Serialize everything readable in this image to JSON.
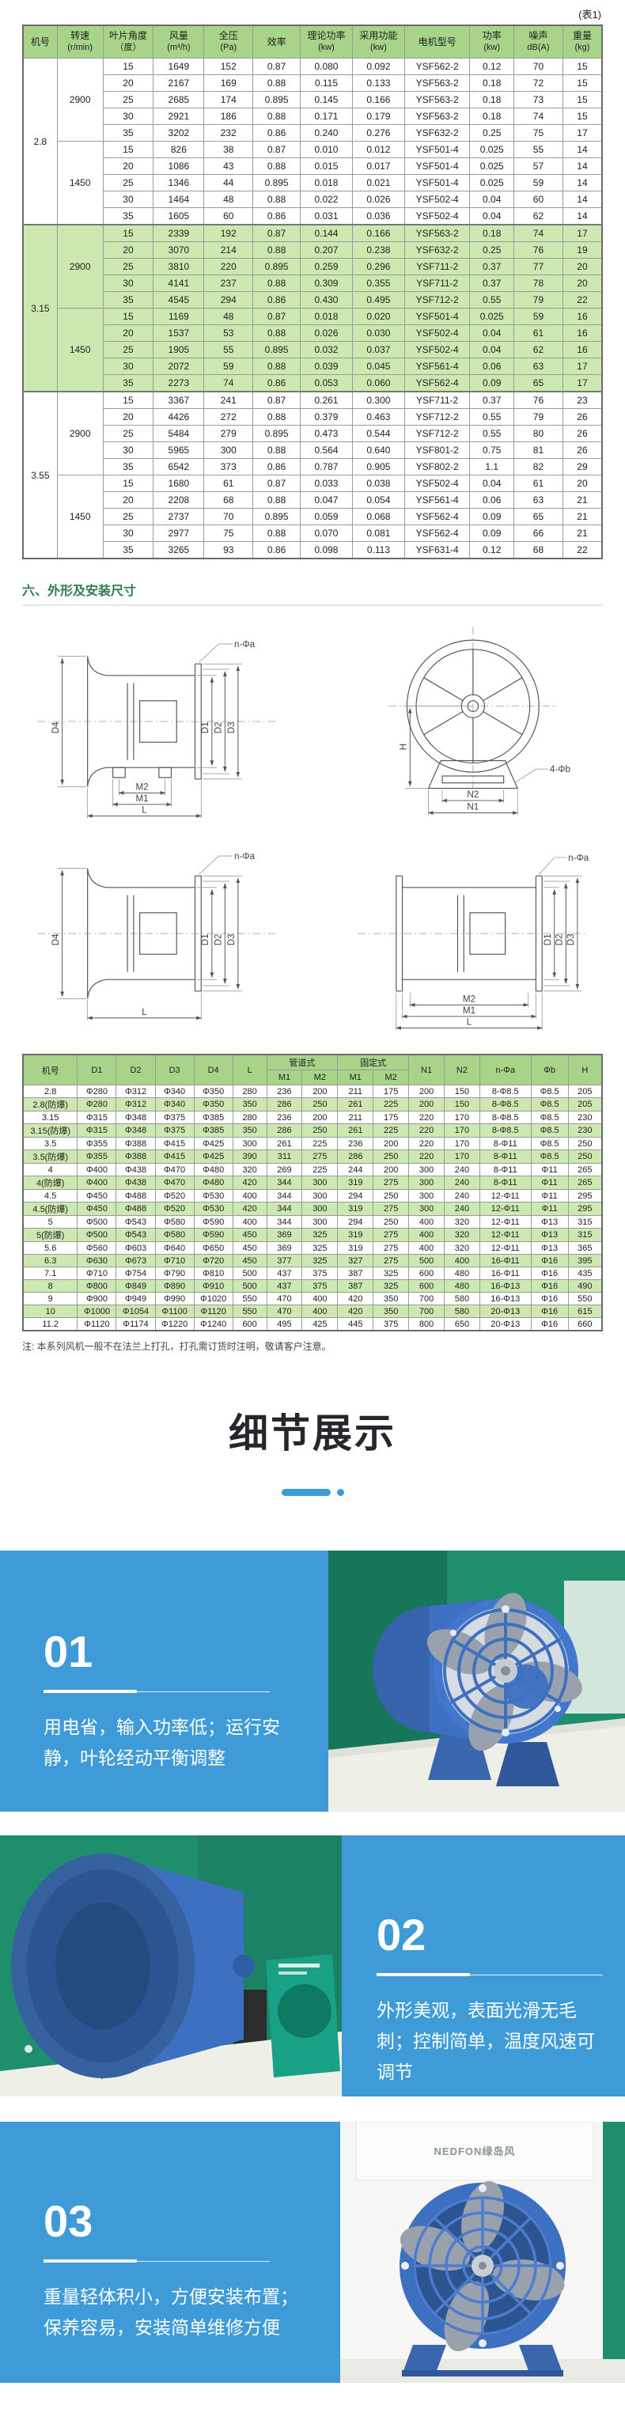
{
  "page": {
    "table_tag": "(表1)"
  },
  "colors": {
    "accent_blue": "#3E9BD8",
    "table_header_green": "#A8D489",
    "table_row_green": "#CDE8B0",
    "section_title_green": "#2E7D52",
    "banner_text": "#24272B"
  },
  "table1": {
    "headers": [
      {
        "t": "机号",
        "s": ""
      },
      {
        "t": "转速",
        "s": "(r/min)"
      },
      {
        "t": "叶片角度",
        "s": "（度）"
      },
      {
        "t": "风量",
        "s": "(m³/h)"
      },
      {
        "t": "全压",
        "s": "(Pa)"
      },
      {
        "t": "效率",
        "s": ""
      },
      {
        "t": "理论功率",
        "s": "(kw)"
      },
      {
        "t": "采用功能",
        "s": "(kw)"
      },
      {
        "t": "电机型号",
        "s": ""
      },
      {
        "t": "功率",
        "s": "(kw)"
      },
      {
        "t": "噪声",
        "s": "dB(A)"
      },
      {
        "t": "重量",
        "s": "(kg)"
      }
    ],
    "groups": [
      {
        "model": "2.8",
        "speeds": [
          {
            "rpm": "2900",
            "rows": [
              [
                "15",
                "1649",
                "152",
                "0.87",
                "0.080",
                "0.092",
                "YSF562-2",
                "0.12",
                "70",
                "15"
              ],
              [
                "20",
                "2167",
                "169",
                "0.88",
                "0.115",
                "0.133",
                "YSF563-2",
                "0.18",
                "72",
                "15"
              ],
              [
                "25",
                "2685",
                "174",
                "0.895",
                "0.145",
                "0.166",
                "YSF563-2",
                "0.18",
                "73",
                "15"
              ],
              [
                "30",
                "2921",
                "186",
                "0.88",
                "0.171",
                "0.179",
                "YSF563-2",
                "0.18",
                "74",
                "15"
              ],
              [
                "35",
                "3202",
                "232",
                "0.86",
                "0.240",
                "0.276",
                "YSF632-2",
                "0.25",
                "75",
                "17"
              ]
            ]
          },
          {
            "rpm": "1450",
            "rows": [
              [
                "15",
                "826",
                "38",
                "0.87",
                "0.010",
                "0.012",
                "YSF501-4",
                "0.025",
                "55",
                "14"
              ],
              [
                "20",
                "1086",
                "43",
                "0.88",
                "0.015",
                "0.017",
                "YSF501-4",
                "0.025",
                "57",
                "14"
              ],
              [
                "25",
                "1346",
                "44",
                "0.895",
                "0.018",
                "0.021",
                "YSF501-4",
                "0.025",
                "59",
                "14"
              ],
              [
                "30",
                "1464",
                "48",
                "0.88",
                "0.022",
                "0.026",
                "YSF502-4",
                "0.04",
                "60",
                "14"
              ],
              [
                "35",
                "1605",
                "60",
                "0.86",
                "0.031",
                "0.036",
                "YSF502-4",
                "0.04",
                "62",
                "14"
              ]
            ]
          }
        ]
      },
      {
        "model": "3.15",
        "speeds": [
          {
            "rpm": "2900",
            "rows": [
              [
                "15",
                "2339",
                "192",
                "0.87",
                "0.144",
                "0.166",
                "YSF563-2",
                "0.18",
                "74",
                "17"
              ],
              [
                "20",
                "3070",
                "214",
                "0.88",
                "0.207",
                "0.238",
                "YSF632-2",
                "0.25",
                "76",
                "19"
              ],
              [
                "25",
                "3810",
                "220",
                "0.895",
                "0.259",
                "0.296",
                "YSF711-2",
                "0.37",
                "77",
                "20"
              ],
              [
                "30",
                "4141",
                "237",
                "0.88",
                "0.309",
                "0.355",
                "YSF711-2",
                "0.37",
                "78",
                "20"
              ],
              [
                "35",
                "4545",
                "294",
                "0.86",
                "0.430",
                "0.495",
                "YSF712-2",
                "0.55",
                "79",
                "22"
              ]
            ]
          },
          {
            "rpm": "1450",
            "rows": [
              [
                "15",
                "1169",
                "48",
                "0.87",
                "0.018",
                "0.020",
                "YSF501-4",
                "0.025",
                "59",
                "16"
              ],
              [
                "20",
                "1537",
                "53",
                "0.88",
                "0.026",
                "0.030",
                "YSF502-4",
                "0.04",
                "61",
                "16"
              ],
              [
                "25",
                "1905",
                "55",
                "0.895",
                "0.032",
                "0.037",
                "YSF502-4",
                "0.04",
                "62",
                "16"
              ],
              [
                "30",
                "2072",
                "59",
                "0.88",
                "0.039",
                "0.045",
                "YSF561-4",
                "0.06",
                "63",
                "17"
              ],
              [
                "35",
                "2273",
                "74",
                "0.86",
                "0.053",
                "0.060",
                "YSF562-4",
                "0.09",
                "65",
                "17"
              ]
            ]
          }
        ]
      },
      {
        "model": "3.55",
        "speeds": [
          {
            "rpm": "2900",
            "rows": [
              [
                "15",
                "3367",
                "241",
                "0.87",
                "0.261",
                "0.300",
                "YSF711-2",
                "0.37",
                "76",
                "23"
              ],
              [
                "20",
                "4426",
                "272",
                "0.88",
                "0.379",
                "0.463",
                "YSF712-2",
                "0.55",
                "79",
                "26"
              ],
              [
                "25",
                "5484",
                "279",
                "0.895",
                "0.473",
                "0.544",
                "YSF712-2",
                "0.55",
                "80",
                "26"
              ],
              [
                "30",
                "5965",
                "300",
                "0.88",
                "0.564",
                "0.640",
                "YSF801-2",
                "0.75",
                "81",
                "26"
              ],
              [
                "35",
                "6542",
                "373",
                "0.86",
                "0.787",
                "0.905",
                "YSF802-2",
                "1.1",
                "82",
                "29"
              ]
            ]
          },
          {
            "rpm": "1450",
            "rows": [
              [
                "15",
                "1680",
                "61",
                "0.87",
                "0.033",
                "0.038",
                "YSF502-4",
                "0.04",
                "61",
                "20"
              ],
              [
                "20",
                "2208",
                "68",
                "0.88",
                "0.047",
                "0.054",
                "YSF561-4",
                "0.06",
                "63",
                "21"
              ],
              [
                "25",
                "2737",
                "70",
                "0.895",
                "0.059",
                "0.068",
                "YSF562-4",
                "0.09",
                "65",
                "21"
              ],
              [
                "30",
                "2977",
                "75",
                "0.88",
                "0.070",
                "0.081",
                "YSF562-4",
                "0.09",
                "66",
                "21"
              ],
              [
                "35",
                "3265",
                "93",
                "0.86",
                "0.098",
                "0.113",
                "YSF631-4",
                "0.12",
                "68",
                "22"
              ]
            ]
          }
        ]
      }
    ]
  },
  "section_dims": {
    "title": "六、外形及安装尺寸"
  },
  "drawings": {
    "hole_label": "n-Φa",
    "bolt_label": "4-Φb",
    "d1": "D1",
    "d2": "D2",
    "d3": "D3",
    "d4": "D4",
    "m1": "M1",
    "m2": "M2",
    "l": "L",
    "n1": "N1",
    "n2": "N2",
    "h": "H"
  },
  "table2": {
    "headers_row1": [
      "机号",
      "D1",
      "D2",
      "D3",
      "D4",
      "L",
      "管道式",
      "固定式",
      "N1",
      "N2",
      "n-Φa",
      "Φb",
      "H"
    ],
    "headers_row2": [
      "M1",
      "M2",
      "M1",
      "M2"
    ],
    "rows": [
      [
        "2.8",
        "Φ280",
        "Φ312",
        "Φ340",
        "Φ350",
        "280",
        "236",
        "200",
        "211",
        "175",
        "200",
        "150",
        "8-Φ8.5",
        "Φ8.5",
        "205"
      ],
      [
        "2.8(防爆)",
        "Φ280",
        "Φ312",
        "Φ340",
        "Φ350",
        "350",
        "286",
        "250",
        "261",
        "225",
        "200",
        "150",
        "8-Φ8.5",
        "Φ8.5",
        "205"
      ],
      [
        "3.15",
        "Φ315",
        "Φ348",
        "Φ375",
        "Φ385",
        "280",
        "236",
        "200",
        "211",
        "175",
        "220",
        "170",
        "8-Φ8.5",
        "Φ8.5",
        "230"
      ],
      [
        "3.15(防爆)",
        "Φ315",
        "Φ348",
        "Φ375",
        "Φ385",
        "350",
        "286",
        "250",
        "261",
        "225",
        "220",
        "170",
        "8-Φ8.5",
        "Φ8.5",
        "230"
      ],
      [
        "3.5",
        "Φ355",
        "Φ388",
        "Φ415",
        "Φ425",
        "300",
        "261",
        "225",
        "236",
        "200",
        "220",
        "170",
        "8-Φ11",
        "Φ8.5",
        "250"
      ],
      [
        "3.5(防爆)",
        "Φ355",
        "Φ388",
        "Φ415",
        "Φ425",
        "390",
        "311",
        "275",
        "286",
        "250",
        "220",
        "170",
        "8-Φ11",
        "Φ8.5",
        "250"
      ],
      [
        "4",
        "Φ400",
        "Φ438",
        "Φ470",
        "Φ480",
        "320",
        "269",
        "225",
        "244",
        "200",
        "300",
        "240",
        "8-Φ11",
        "Φ11",
        "265"
      ],
      [
        "4(防爆)",
        "Φ400",
        "Φ438",
        "Φ470",
        "Φ480",
        "420",
        "344",
        "300",
        "319",
        "275",
        "300",
        "240",
        "8-Φ11",
        "Φ11",
        "265"
      ],
      [
        "4.5",
        "Φ450",
        "Φ488",
        "Φ520",
        "Φ530",
        "400",
        "344",
        "300",
        "294",
        "250",
        "300",
        "240",
        "12-Φ11",
        "Φ11",
        "295"
      ],
      [
        "4.5(防爆)",
        "Φ450",
        "Φ488",
        "Φ520",
        "Φ530",
        "420",
        "344",
        "300",
        "319",
        "275",
        "300",
        "240",
        "12-Φ11",
        "Φ11",
        "295"
      ],
      [
        "5",
        "Φ500",
        "Φ543",
        "Φ580",
        "Φ590",
        "400",
        "344",
        "300",
        "294",
        "250",
        "400",
        "320",
        "12-Φ11",
        "Φ13",
        "315"
      ],
      [
        "5(防爆)",
        "Φ500",
        "Φ543",
        "Φ580",
        "Φ590",
        "450",
        "369",
        "325",
        "319",
        "275",
        "400",
        "320",
        "12-Φ11",
        "Φ13",
        "315"
      ],
      [
        "5.6",
        "Φ560",
        "Φ603",
        "Φ640",
        "Φ650",
        "450",
        "369",
        "325",
        "319",
        "275",
        "400",
        "320",
        "12-Φ11",
        "Φ13",
        "365"
      ],
      [
        "6.3",
        "Φ630",
        "Φ673",
        "Φ710",
        "Φ720",
        "450",
        "377",
        "325",
        "327",
        "275",
        "500",
        "400",
        "16-Φ11",
        "Φ16",
        "395"
      ],
      [
        "7.1",
        "Φ710",
        "Φ754",
        "Φ790",
        "Φ810",
        "500",
        "437",
        "375",
        "387",
        "325",
        "600",
        "480",
        "16-Φ11",
        "Φ16",
        "435"
      ],
      [
        "8",
        "Φ800",
        "Φ849",
        "Φ890",
        "Φ910",
        "500",
        "437",
        "375",
        "387",
        "325",
        "600",
        "480",
        "16-Φ13",
        "Φ16",
        "490"
      ],
      [
        "9",
        "Φ900",
        "Φ949",
        "Φ990",
        "Φ1020",
        "550",
        "470",
        "400",
        "420",
        "350",
        "700",
        "580",
        "16-Φ13",
        "Φ16",
        "550"
      ],
      [
        "10",
        "Φ1000",
        "Φ1054",
        "Φ1100",
        "Φ1120",
        "550",
        "470",
        "400",
        "420",
        "350",
        "700",
        "580",
        "20-Φ13",
        "Φ16",
        "615"
      ],
      [
        "11.2",
        "Φ1120",
        "Φ1174",
        "Φ1220",
        "Φ1240",
        "600",
        "495",
        "425",
        "445",
        "375",
        "800",
        "650",
        "20-Φ13",
        "Φ16",
        "660"
      ]
    ]
  },
  "note": "注: 本系列风机一般不在法兰上打孔，打孔需订货时注明，敬请客户注意。",
  "banner": {
    "title": "细节展示"
  },
  "features": [
    {
      "num": "01",
      "text": "用电省，输入功率低；运行安静，叶轮经动平衡调整"
    },
    {
      "num": "02",
      "text": "外形美观，表面光滑无毛刺；控制简单，温度风速可调节"
    },
    {
      "num": "03",
      "text": "重量轻体积小，方便安装布置；保养容易，安装简单维修方便"
    }
  ],
  "photos": {
    "sign": "NEDFON绿岛风"
  }
}
